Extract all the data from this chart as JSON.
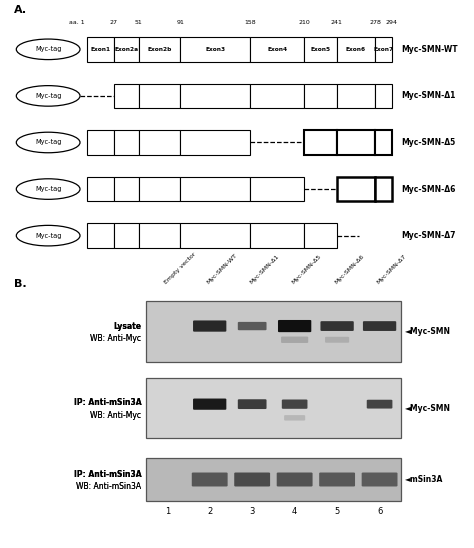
{
  "title_A": "A.",
  "title_B": "B.",
  "aa_positions": [
    1,
    27,
    51,
    91,
    158,
    210,
    241,
    278,
    294
  ],
  "exon_labels": [
    "Exon1",
    "Exon2a",
    "Exon2b",
    "Exon3",
    "Exon4",
    "Exon5",
    "Exon6",
    "Exon7"
  ],
  "construct_labels": [
    "Myc-SMN-WT",
    "Myc-SMN-Δ1",
    "Myc-SMN-Δ5",
    "Myc-SMN-Δ6",
    "Myc-SMN-Δ7"
  ],
  "lane_labels": [
    "Empty vector",
    "Myc-SMN-WT",
    "Myc-SMN-Δ1",
    "Myc-SMN-Δ5",
    "Myc-SMN-Δ6",
    "Myc-SMN-Δ7"
  ],
  "wb_panels": [
    {
      "label1": "Lysate",
      "label2": "WB: Anti-Myc",
      "annotation": "◄Myc-SMN"
    },
    {
      "label1": "IP: Anti-mSin3A",
      "label2": "WB: Anti-Myc",
      "annotation": "◄Myc-SMN"
    },
    {
      "label1": "IP: Anti-mSin3A",
      "label2": "WB: Anti-mSin3A",
      "annotation": "◄mSin3A"
    }
  ],
  "lane_numbers": [
    "1",
    "2",
    "3",
    "4",
    "5",
    "6"
  ],
  "background_color": "#ffffff",
  "panel_bg": "#c8c8c8",
  "panel_bg2": "#d0d0d0",
  "panel_bg3": "#c0c0c0"
}
